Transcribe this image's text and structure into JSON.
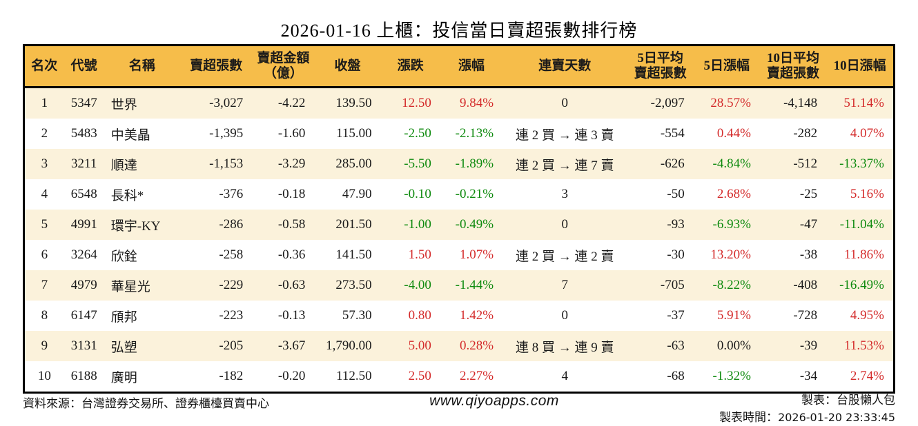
{
  "title": "2026-01-16 上櫃：投信當日賣超張數排行榜",
  "colors": {
    "up_red": "#d42b2b",
    "down_green": "#0e8a0e",
    "neutral_text": "#1a1a1a",
    "header_bg": "#f6bd4a",
    "row_stripe": "#fbf2db",
    "table_border": "#000000"
  },
  "table": {
    "columns": [
      {
        "label": "名次"
      },
      {
        "label": "代號"
      },
      {
        "label": "名稱"
      },
      {
        "label": "賣超張數"
      },
      {
        "label": "賣超金額\n（億）"
      },
      {
        "label": "收盤"
      },
      {
        "label": "漲跌"
      },
      {
        "label": "漲幅"
      },
      {
        "label": "連賣天數"
      },
      {
        "label": "5日平均\n賣超張數"
      },
      {
        "label": "5日漲幅"
      },
      {
        "label": "10日平均\n賣超張數"
      },
      {
        "label": "10日漲幅"
      }
    ],
    "rows": [
      {
        "cells": [
          "1",
          "5347",
          "世界",
          "-3,027",
          "-4.22",
          "139.50",
          "12.50",
          "9.84%",
          "0",
          "-2,097",
          "28.57%",
          "-4,148",
          "51.14%"
        ],
        "cell_colors": [
          "k",
          "k",
          "k",
          "k",
          "k",
          "k",
          "r",
          "r",
          "k",
          "k",
          "r",
          "k",
          "r"
        ]
      },
      {
        "cells": [
          "2",
          "5483",
          "中美晶",
          "-1,395",
          "-1.60",
          "115.00",
          "-2.50",
          "-2.13%",
          "連 2 買 → 連 3 賣",
          "-554",
          "0.44%",
          "-282",
          "4.07%"
        ],
        "cell_colors": [
          "k",
          "k",
          "k",
          "k",
          "k",
          "k",
          "g",
          "g",
          "k",
          "k",
          "r",
          "k",
          "r"
        ]
      },
      {
        "cells": [
          "3",
          "3211",
          "順達",
          "-1,153",
          "-3.29",
          "285.00",
          "-5.50",
          "-1.89%",
          "連 2 買 → 連 7 賣",
          "-626",
          "-4.84%",
          "-512",
          "-13.37%"
        ],
        "cell_colors": [
          "k",
          "k",
          "k",
          "k",
          "k",
          "k",
          "g",
          "g",
          "k",
          "k",
          "g",
          "k",
          "g"
        ]
      },
      {
        "cells": [
          "4",
          "6548",
          "長科*",
          "-376",
          "-0.18",
          "47.90",
          "-0.10",
          "-0.21%",
          "3",
          "-50",
          "2.68%",
          "-25",
          "5.16%"
        ],
        "cell_colors": [
          "k",
          "k",
          "k",
          "k",
          "k",
          "k",
          "g",
          "g",
          "k",
          "k",
          "r",
          "k",
          "r"
        ]
      },
      {
        "cells": [
          "5",
          "4991",
          "環宇-KY",
          "-286",
          "-0.58",
          "201.50",
          "-1.00",
          "-0.49%",
          "0",
          "-93",
          "-6.93%",
          "-47",
          "-11.04%"
        ],
        "cell_colors": [
          "k",
          "k",
          "k",
          "k",
          "k",
          "k",
          "g",
          "g",
          "k",
          "k",
          "g",
          "k",
          "g"
        ]
      },
      {
        "cells": [
          "6",
          "3264",
          "欣銓",
          "-258",
          "-0.36",
          "141.50",
          "1.50",
          "1.07%",
          "連 2 買 → 連 2 賣",
          "-30",
          "13.20%",
          "-38",
          "11.86%"
        ],
        "cell_colors": [
          "k",
          "k",
          "k",
          "k",
          "k",
          "k",
          "r",
          "r",
          "k",
          "k",
          "r",
          "k",
          "r"
        ]
      },
      {
        "cells": [
          "7",
          "4979",
          "華星光",
          "-229",
          "-0.63",
          "273.50",
          "-4.00",
          "-1.44%",
          "7",
          "-705",
          "-8.22%",
          "-408",
          "-16.49%"
        ],
        "cell_colors": [
          "k",
          "k",
          "k",
          "k",
          "k",
          "k",
          "g",
          "g",
          "k",
          "k",
          "g",
          "k",
          "g"
        ]
      },
      {
        "cells": [
          "8",
          "6147",
          "頎邦",
          "-223",
          "-0.13",
          "57.30",
          "0.80",
          "1.42%",
          "0",
          "-37",
          "5.91%",
          "-728",
          "4.95%"
        ],
        "cell_colors": [
          "k",
          "k",
          "k",
          "k",
          "k",
          "k",
          "r",
          "r",
          "k",
          "k",
          "r",
          "k",
          "r"
        ]
      },
      {
        "cells": [
          "9",
          "3131",
          "弘塑",
          "-205",
          "-3.67",
          "1,790.00",
          "5.00",
          "0.28%",
          "連 8 買 → 連 9 賣",
          "-63",
          "0.00%",
          "-39",
          "11.53%"
        ],
        "cell_colors": [
          "k",
          "k",
          "k",
          "k",
          "k",
          "k",
          "r",
          "r",
          "k",
          "k",
          "k",
          "k",
          "r"
        ]
      },
      {
        "cells": [
          "10",
          "6188",
          "廣明",
          "-182",
          "-0.20",
          "112.50",
          "2.50",
          "2.27%",
          "4",
          "-68",
          "-1.32%",
          "-34",
          "2.74%"
        ],
        "cell_colors": [
          "k",
          "k",
          "k",
          "k",
          "k",
          "k",
          "r",
          "r",
          "k",
          "k",
          "g",
          "k",
          "r"
        ]
      }
    ]
  },
  "footer": {
    "source": "資料來源：台灣證券交易所、證券櫃檯買賣中心",
    "site": "www.qiyoapps.com",
    "maker_line": "製表：台股懶人包",
    "time_label": "製表時間：",
    "timestamp": "2026-01-20 23:33:45"
  }
}
